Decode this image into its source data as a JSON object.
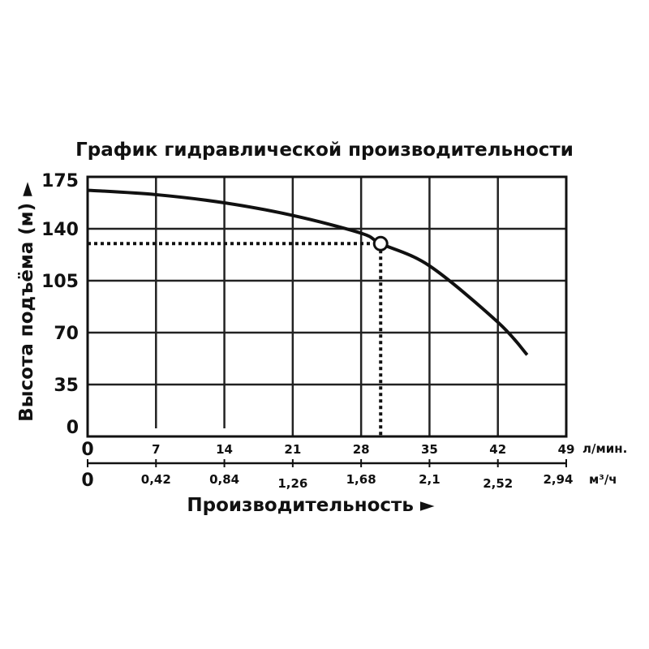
{
  "chart_data": {
    "type": "line",
    "title": "График гидравлической производительности",
    "xlabel": "Производительность ►",
    "ylabel": "Высота подъёма (м) ►",
    "x_unit_primary": "л/мин.",
    "x_unit_secondary": "м³/ч",
    "xlim": [
      0,
      49
    ],
    "ylim": [
      0,
      175
    ],
    "x_ticks": [
      "0",
      "7",
      "14",
      "21",
      "28",
      "35",
      "42",
      "49"
    ],
    "x_tick_values": [
      0,
      7,
      14,
      21,
      28,
      35,
      42,
      49
    ],
    "x2_ticks": [
      "0",
      "0,42",
      "0,84",
      "1,26",
      "1,68",
      "2,1",
      "2,52",
      "2,94"
    ],
    "y_ticks": [
      "0",
      "35",
      "70",
      "105",
      "140",
      "175"
    ],
    "y_tick_values": [
      0,
      35,
      70,
      105,
      140,
      175
    ],
    "grid": true,
    "series": [
      {
        "x": [
          0,
          7,
          14,
          21,
          28,
          30,
          35,
          42,
          45
        ],
        "y": [
          166,
          163,
          157.5,
          149,
          137,
          130,
          115,
          77,
          55
        ],
        "color": "#111111"
      }
    ],
    "operating_point": {
      "x": 30,
      "y": 130
    }
  }
}
